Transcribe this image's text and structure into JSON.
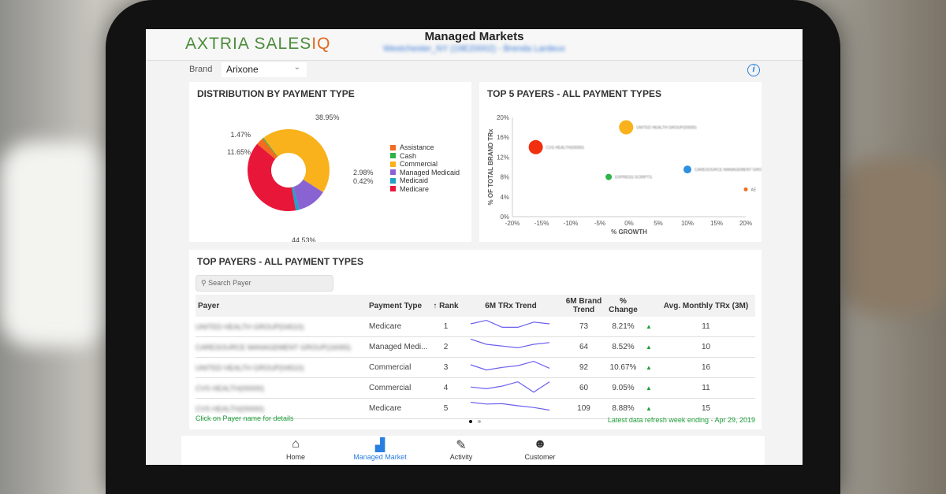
{
  "header": {
    "logo": "AXTRIA SALESIQ",
    "title": "Managed Markets",
    "subtitle": "Westchester_NY (19E20002) - Brenda Lardeux"
  },
  "filter": {
    "label": "Brand",
    "value": "Arixone"
  },
  "info_icon": "info-icon",
  "distribution": {
    "title": "DISTRIBUTION BY PAYMENT TYPE"
  },
  "top5": {
    "title": "TOP 5 PAYERS - ALL PAYMENT TYPES"
  },
  "chart_data": [
    {
      "type": "pie",
      "title": "DISTRIBUTION BY PAYMENT TYPE",
      "categories": [
        "Assistance",
        "Cash",
        "Commercial",
        "Managed Medicaid",
        "Medicaid",
        "Medicare"
      ],
      "values": [
        2.98,
        0.42,
        44.53,
        11.65,
        1.47,
        38.95
      ],
      "labels": [
        "2.98%",
        "0.42%",
        "44.53%",
        "11.65%",
        "1.47%",
        "38.95%"
      ],
      "colors": [
        "#f26b21",
        "#2db34a",
        "#f9b21b",
        "#8a63d2",
        "#1fa3c4",
        "#e8173a"
      ],
      "legend": "right"
    },
    {
      "type": "scatter",
      "title": "TOP 5 PAYERS - ALL PAYMENT TYPES",
      "xlabel": "% GROWTH",
      "ylabel": "% OF TOTAL BRAND TRx",
      "xlim": [
        -20,
        20
      ],
      "ylim": [
        0,
        20
      ],
      "xticks": [
        "-20%",
        "-15%",
        "-10%",
        "-5%",
        "0%",
        "5%",
        "10%",
        "15%",
        "20%"
      ],
      "yticks": [
        "0%",
        "4%",
        "8%",
        "12%",
        "16%",
        "20%"
      ],
      "points": [
        {
          "x": -16,
          "y": 14,
          "size": "large",
          "color": "#f0300e",
          "label": "CVS HEALTH(00000)"
        },
        {
          "x": -0.5,
          "y": 18,
          "size": "large",
          "color": "#f9b21b",
          "label": "UNITED HEALTH GROUP(00000)"
        },
        {
          "x": -3.5,
          "y": 8,
          "size": "small",
          "color": "#2db34a",
          "label": "EXPRESS SCRIPTS"
        },
        {
          "x": 10,
          "y": 9.5,
          "size": "medium",
          "color": "#2f8fe0",
          "label": "CARESOURCE MANAGEMENT GROUP"
        },
        {
          "x": 20,
          "y": 5.5,
          "size": "tiny",
          "color": "#f26b21",
          "label": "AE"
        }
      ]
    }
  ],
  "table": {
    "title": "TOP PAYERS - ALL PAYMENT TYPES",
    "search_placeholder": "Search Payer",
    "headers": [
      "Payer",
      "Payment Type",
      "Rank",
      "6M TRx Trend",
      "6M Brand Trend",
      "% Change",
      "Avg. Monthly TRx (3M)"
    ],
    "rows": [
      {
        "payer": "UNITED HEALTH GROUP(04510)",
        "type": "Medicare",
        "rank": "1",
        "trend": [
          5,
          7,
          3,
          3,
          6,
          5
        ],
        "brand": "73",
        "change": "8.21%",
        "avg": "11"
      },
      {
        "payer": "CARESOURCE MANAGEMENT GROUP(16065)",
        "type": "Managed Medi...",
        "rank": "2",
        "trend": [
          8,
          5,
          4,
          3,
          5,
          6
        ],
        "brand": "64",
        "change": "8.52%",
        "avg": "10"
      },
      {
        "payer": "UNITED HEALTH GROUP(04510)",
        "type": "Commercial",
        "rank": "3",
        "trend": [
          5,
          2,
          3.5,
          4.5,
          7,
          3
        ],
        "brand": "92",
        "change": "10.67%",
        "avg": "16"
      },
      {
        "payer": "CVS HEALTH(00000)",
        "type": "Commercial",
        "rank": "4",
        "trend": [
          4,
          3,
          4.5,
          7,
          1,
          7
        ],
        "brand": "60",
        "change": "9.05%",
        "avg": "11"
      },
      {
        "payer": "CVS HEALTH(00000)",
        "type": "Medicare",
        "rank": "5",
        "trend": [
          7,
          6,
          6.2,
          5,
          4,
          2.5
        ],
        "brand": "109",
        "change": "8.88%",
        "avg": "15"
      }
    ],
    "footer_left": "Click on Payer name for details",
    "footer_right": "Latest data refresh week ending  -  Apr 29, 2019"
  },
  "nav": [
    {
      "label": "Home",
      "icon": "⌂"
    },
    {
      "label": "Managed Market",
      "icon": "▟"
    },
    {
      "label": "Activity",
      "icon": "✎"
    },
    {
      "label": "Customer",
      "icon": "☻"
    }
  ],
  "colors": {
    "green": "#1f9e3a",
    "accent": "#3a7bd5",
    "spark": "#6a5ff0"
  }
}
